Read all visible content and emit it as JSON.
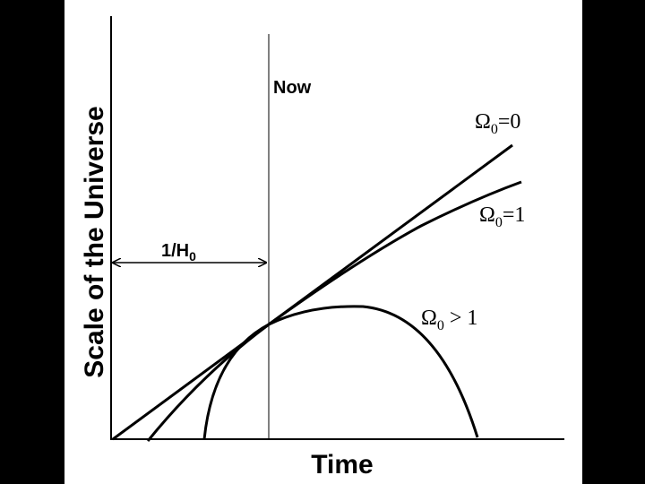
{
  "axes": {
    "y_label": "Scale of the Universe",
    "x_label": "Time"
  },
  "now_label": "Now",
  "hubble_time": {
    "text": "1/H",
    "sub": "0"
  },
  "curves": [
    {
      "symbol": "Ω",
      "sub": "0",
      "rest": "=0"
    },
    {
      "symbol": "Ω",
      "sub": "0",
      "rest": "=1"
    },
    {
      "symbol": "Ω",
      "sub": "0",
      "rest": " > 1"
    }
  ]
}
